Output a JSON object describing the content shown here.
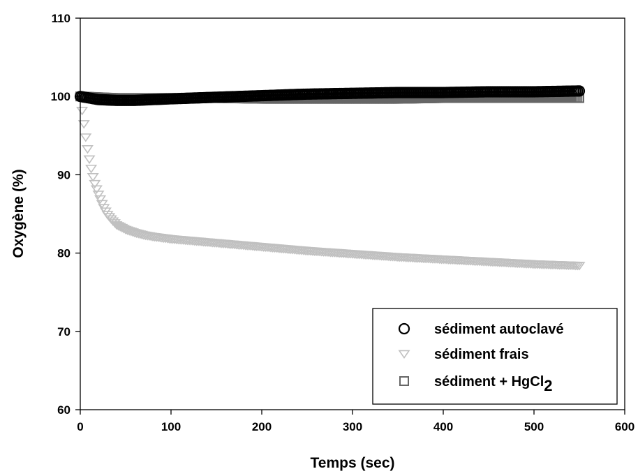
{
  "chart_data": {
    "type": "scatter",
    "xlabel": "Temps (sec)",
    "ylabel": "Oxygène (%)",
    "xlim": [
      0,
      600
    ],
    "ylim": [
      60,
      110
    ],
    "x_ticks": [
      "0",
      "100",
      "200",
      "300",
      "400",
      "500",
      "600"
    ],
    "y_ticks": [
      "60",
      "70",
      "80",
      "90",
      "100",
      "110"
    ],
    "grid": false,
    "legend_position": "bottom-right",
    "series": [
      {
        "name": "sédiment autoclavé",
        "marker": "circle",
        "color": "#000000",
        "x": [
          0,
          20,
          40,
          60,
          80,
          100,
          150,
          200,
          250,
          300,
          350,
          400,
          450,
          500,
          550
        ],
        "y": [
          100.0,
          99.6,
          99.5,
          99.5,
          99.6,
          99.7,
          99.9,
          100.1,
          100.3,
          100.4,
          100.5,
          100.5,
          100.6,
          100.6,
          100.7
        ]
      },
      {
        "name": "sédiment frais",
        "marker": "triangle-down",
        "color": "#c0c0c0",
        "x": [
          0,
          2,
          4,
          6,
          8,
          10,
          12,
          15,
          20,
          25,
          30,
          35,
          40,
          50,
          60,
          70,
          80,
          100,
          150,
          200,
          250,
          300,
          350,
          400,
          450,
          500,
          550
        ],
        "y": [
          100.0,
          98.2,
          96.5,
          94.8,
          93.3,
          92.0,
          90.8,
          89.2,
          87.5,
          86.0,
          84.9,
          84.2,
          83.6,
          83.0,
          82.6,
          82.3,
          82.1,
          81.8,
          81.3,
          80.8,
          80.3,
          79.9,
          79.5,
          79.2,
          78.9,
          78.6,
          78.4
        ]
      },
      {
        "name": "sédiment + HgCl2",
        "name_main": "sédiment + HgCl",
        "name_subscript": "2",
        "marker": "square",
        "color": "#666666",
        "x": [
          0,
          20,
          40,
          60,
          80,
          100,
          150,
          200,
          250,
          300,
          350,
          400,
          450,
          500,
          550
        ],
        "y": [
          100.0,
          99.9,
          99.8,
          99.8,
          99.8,
          99.8,
          99.8,
          99.7,
          99.7,
          99.7,
          99.7,
          99.8,
          99.8,
          99.8,
          99.8
        ]
      }
    ]
  }
}
